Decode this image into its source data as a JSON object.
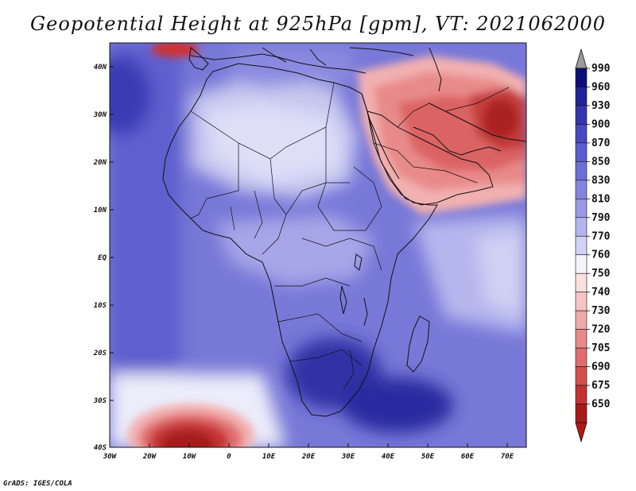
{
  "title": "Geopotential Height at 925hPa [gpm], VT: 2021062000",
  "credit": "GrADS: IGES/COLA",
  "map": {
    "lon_labels": [
      "30W",
      "20W",
      "10W",
      "0",
      "10E",
      "20E",
      "30E",
      "40E",
      "50E",
      "60E",
      "70E"
    ],
    "lat_labels": [
      "40N",
      "30N",
      "20N",
      "10N",
      "EQ",
      "10S",
      "20S",
      "30S",
      "40S"
    ]
  },
  "colorbar": {
    "levels": [
      "990",
      "960",
      "930",
      "900",
      "870",
      "850",
      "830",
      "810",
      "790",
      "770",
      "760",
      "750",
      "740",
      "730",
      "720",
      "705",
      "690",
      "675",
      "650"
    ],
    "colors": [
      "#0e0e7a",
      "#22229a",
      "#3434b0",
      "#4848c4",
      "#5c5cd0",
      "#6e6ed8",
      "#8484e0",
      "#9a9ae6",
      "#b4b4ee",
      "#d2d2f6",
      "#f4f4fc",
      "#fbe0e0",
      "#f6c4c4",
      "#f0a8a8",
      "#e88a8a",
      "#e06c6c",
      "#d44e4e",
      "#c43232",
      "#a81a1a"
    ],
    "over_color": "#9a9a9a",
    "under_color": "#b01818"
  }
}
